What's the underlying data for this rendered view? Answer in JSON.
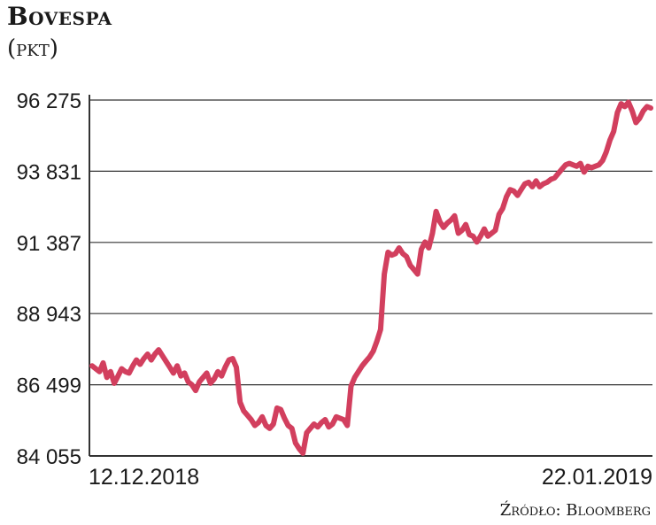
{
  "chart_data": {
    "type": "line",
    "title": "Bovespa",
    "ylabel": "(pkt)",
    "source": "Źródło: Bloomberg",
    "yticks": [
      84055,
      86499,
      88943,
      91387,
      93831,
      96275
    ],
    "ytick_labels": [
      "84 055",
      "86 499",
      "88 943",
      "91 387",
      "93 831",
      "96 275"
    ],
    "ylim": [
      84055,
      96275
    ],
    "x_start_label": "12.12.2018",
    "x_end_label": "22.01.2019",
    "grid": true,
    "colors": {
      "line": "#d23f5e",
      "grid": "#333333",
      "text": "#1a1a1a"
    },
    "series": [
      {
        "name": "",
        "values": [
          87150,
          87050,
          86950,
          87250,
          86750,
          86950,
          86550,
          86800,
          87050,
          86950,
          86900,
          87150,
          87350,
          87200,
          87400,
          87550,
          87350,
          87550,
          87700,
          87500,
          87300,
          87100,
          86900,
          87150,
          86800,
          86900,
          86600,
          86500,
          86300,
          86600,
          86750,
          86900,
          86550,
          86700,
          86950,
          86800,
          87100,
          87350,
          87400,
          87100,
          85900,
          85600,
          85450,
          85300,
          85100,
          85200,
          85400,
          85100,
          85000,
          85150,
          85700,
          85650,
          85350,
          85100,
          85000,
          84500,
          84300,
          84150,
          84850,
          85000,
          85150,
          85050,
          85200,
          85300,
          85050,
          85150,
          85400,
          85350,
          85300,
          85100,
          86450,
          86750,
          86950,
          87150,
          87300,
          87450,
          87650,
          88000,
          88400,
          90300,
          91050,
          90950,
          91000,
          91200,
          91000,
          90900,
          90600,
          90450,
          90300,
          91150,
          91400,
          91200,
          91700,
          92450,
          92100,
          91900,
          92050,
          92150,
          92300,
          91700,
          91800,
          92000,
          91650,
          91600,
          91400,
          91600,
          91850,
          91600,
          91700,
          91800,
          92350,
          92550,
          92950,
          93200,
          93150,
          93000,
          93200,
          93400,
          93450,
          93300,
          93500,
          93300,
          93400,
          93450,
          93550,
          93600,
          93750,
          93900,
          94050,
          94100,
          94050,
          94000,
          94100,
          93800,
          94000,
          93950,
          94000,
          94050,
          94200,
          94500,
          94900,
          95200,
          95850,
          96150,
          96050,
          96200,
          95900,
          95500,
          95650,
          95900,
          96050,
          96000
        ]
      }
    ]
  }
}
